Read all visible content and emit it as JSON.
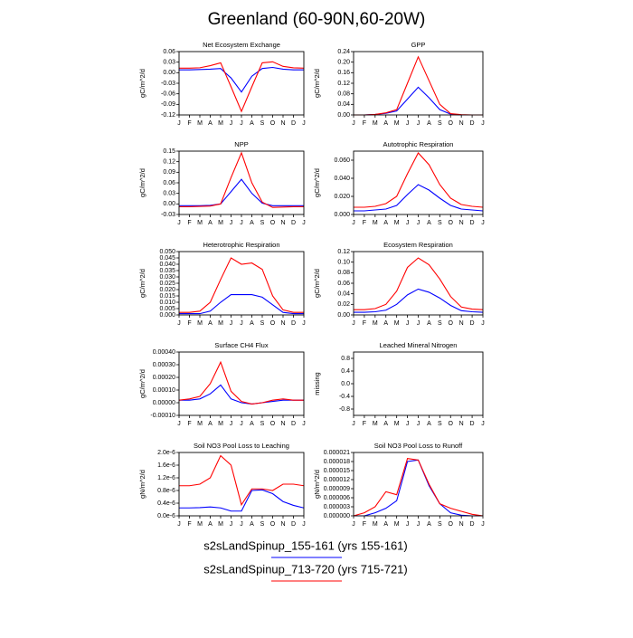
{
  "title": "Greenland (60-90N,60-20W)",
  "chart_data": [
    {
      "type": "line",
      "title": "Net Ecosystem Exchange",
      "ylabel": "gC/m^2/d",
      "categories": [
        "J",
        "F",
        "M",
        "A",
        "M",
        "J",
        "J",
        "A",
        "S",
        "O",
        "N",
        "D",
        "J"
      ],
      "ylim": [
        -0.12,
        0.06
      ],
      "yticks": [
        0.06,
        0.03,
        {
          "value": 0,
          "label": "0.00"
        },
        -0.03,
        -0.06,
        -0.09,
        -0.12
      ],
      "series": [
        {
          "name": "s2sLandSpinup_155-161 (yrs 155-161)",
          "color": "#0000ff",
          "values": [
            0.008,
            0.008,
            0.009,
            0.01,
            0.012,
            -0.015,
            -0.055,
            -0.01,
            0.012,
            0.015,
            0.01,
            0.008,
            0.008
          ]
        },
        {
          "name": "s2sLandSpinup_713-720 (yrs 715-721)",
          "color": "#ff0000",
          "values": [
            0.013,
            0.013,
            0.014,
            0.02,
            0.028,
            -0.04,
            -0.11,
            -0.04,
            0.028,
            0.031,
            0.018,
            0.014,
            0.013
          ]
        }
      ]
    },
    {
      "type": "line",
      "title": "GPP",
      "ylabel": "gC/m^2/d",
      "categories": [
        "J",
        "F",
        "M",
        "A",
        "M",
        "J",
        "J",
        "A",
        "S",
        "O",
        "N",
        "D",
        "J"
      ],
      "ylim": [
        0,
        0.24
      ],
      "yticks": [
        0.24,
        {
          "value": 0.2,
          "label": "0.20"
        },
        0.16,
        0.12,
        0.08,
        0.04,
        {
          "value": 0,
          "label": "0.00"
        }
      ],
      "series": [
        {
          "color": "#0000ff",
          "values": [
            0,
            0,
            0.002,
            0.006,
            0.015,
            0.06,
            0.105,
            0.065,
            0.02,
            0.003,
            0,
            0,
            0
          ]
        },
        {
          "color": "#ff0000",
          "values": [
            0,
            0,
            0.002,
            0.008,
            0.02,
            0.12,
            0.22,
            0.13,
            0.04,
            0.005,
            0.001,
            0,
            0
          ]
        }
      ]
    },
    {
      "type": "line",
      "title": "NPP",
      "ylabel": "gC/m^2/d",
      "categories": [
        "J",
        "F",
        "M",
        "A",
        "M",
        "J",
        "J",
        "A",
        "S",
        "O",
        "N",
        "D",
        "J"
      ],
      "ylim": [
        -0.03,
        0.15
      ],
      "yticks": [
        0.15,
        0.12,
        0.09,
        0.06,
        0.03,
        {
          "value": 0,
          "label": "0.00"
        },
        -0.03
      ],
      "series": [
        {
          "color": "#0000ff",
          "values": [
            -0.005,
            -0.005,
            -0.005,
            -0.004,
            0,
            0.035,
            0.07,
            0.03,
            0.002,
            -0.005,
            -0.005,
            -0.005,
            -0.005
          ]
        },
        {
          "color": "#ff0000",
          "values": [
            -0.008,
            -0.008,
            -0.007,
            -0.006,
            0,
            0.075,
            0.145,
            0.06,
            0.005,
            -0.01,
            -0.009,
            -0.008,
            -0.008
          ]
        }
      ]
    },
    {
      "type": "line",
      "title": "Autotrophic Respiration",
      "ylabel": "gC/m^2/d",
      "categories": [
        "J",
        "F",
        "M",
        "A",
        "M",
        "J",
        "J",
        "A",
        "S",
        "O",
        "N",
        "D",
        "J"
      ],
      "ylim": [
        0,
        0.07
      ],
      "yticks": [
        {
          "value": 0.06,
          "label": "0.060"
        },
        {
          "value": 0.04,
          "label": "0.040"
        },
        {
          "value": 0.02,
          "label": "0.020"
        },
        {
          "value": 0,
          "label": "0.000"
        }
      ],
      "series": [
        {
          "color": "#0000ff",
          "values": [
            0.004,
            0.004,
            0.005,
            0.006,
            0.01,
            0.022,
            0.033,
            0.027,
            0.018,
            0.01,
            0.006,
            0.005,
            0.004
          ]
        },
        {
          "color": "#ff0000",
          "values": [
            0.008,
            0.008,
            0.009,
            0.012,
            0.02,
            0.045,
            0.068,
            0.055,
            0.033,
            0.018,
            0.011,
            0.009,
            0.008
          ]
        }
      ]
    },
    {
      "type": "line",
      "title": "Heterotrophic Respiration",
      "ylabel": "gC/m^2/d",
      "categories": [
        "J",
        "F",
        "M",
        "A",
        "M",
        "J",
        "J",
        "A",
        "S",
        "O",
        "N",
        "D",
        "J"
      ],
      "ylim": [
        0,
        0.05
      ],
      "yticks": [
        {
          "value": 0.05,
          "label": "0.050"
        },
        0.045,
        {
          "value": 0.04,
          "label": "0.040"
        },
        0.035,
        {
          "value": 0.03,
          "label": "0.030"
        },
        0.025,
        {
          "value": 0.02,
          "label": "0.020"
        },
        0.015,
        {
          "value": 0.01,
          "label": "0.010"
        },
        0.005,
        {
          "value": 0,
          "label": "0.000"
        }
      ],
      "series": [
        {
          "color": "#0000ff",
          "values": [
            0.001,
            0.001,
            0.001,
            0.003,
            0.01,
            0.016,
            0.016,
            0.016,
            0.014,
            0.008,
            0.002,
            0.001,
            0.001
          ]
        },
        {
          "color": "#ff0000",
          "values": [
            0.002,
            0.002,
            0.003,
            0.01,
            0.028,
            0.045,
            0.04,
            0.041,
            0.036,
            0.015,
            0.004,
            0.002,
            0.002
          ]
        }
      ]
    },
    {
      "type": "line",
      "title": "Ecosystem Respiration",
      "ylabel": "gC/m^2/d",
      "categories": [
        "J",
        "F",
        "M",
        "A",
        "M",
        "J",
        "J",
        "A",
        "S",
        "O",
        "N",
        "D",
        "J"
      ],
      "ylim": [
        0,
        0.12
      ],
      "yticks": [
        0.12,
        {
          "value": 0.1,
          "label": "0.10"
        },
        0.08,
        0.06,
        0.04,
        0.02,
        {
          "value": 0,
          "label": "0.00"
        }
      ],
      "series": [
        {
          "color": "#0000ff",
          "values": [
            0.005,
            0.005,
            0.006,
            0.009,
            0.02,
            0.038,
            0.049,
            0.043,
            0.032,
            0.018,
            0.008,
            0.006,
            0.005
          ]
        },
        {
          "color": "#ff0000",
          "values": [
            0.01,
            0.01,
            0.012,
            0.02,
            0.045,
            0.09,
            0.108,
            0.095,
            0.068,
            0.035,
            0.015,
            0.011,
            0.01
          ]
        }
      ]
    },
    {
      "type": "line",
      "title": "Surface CH4 Flux",
      "ylabel": "gC/m^2/d",
      "categories": [
        "J",
        "F",
        "M",
        "A",
        "M",
        "J",
        "J",
        "A",
        "S",
        "O",
        "N",
        "D",
        "J"
      ],
      "ylim": [
        -0.0001,
        0.0004
      ],
      "yticks": [
        {
          "value": 0.0004,
          "label": "0.00040"
        },
        {
          "value": 0.0003,
          "label": "0.00030"
        },
        {
          "value": 0.0002,
          "label": "0.00020"
        },
        {
          "value": 0.0001,
          "label": "0.00010"
        },
        {
          "value": 0,
          "label": "0.00000"
        },
        {
          "value": -0.0001,
          "label": "-0.00010"
        }
      ],
      "series": [
        {
          "color": "#0000ff",
          "values": [
            2e-05,
            2e-05,
            3e-05,
            7e-05,
            0.00014,
            3e-05,
            0,
            -1e-05,
            0,
            1e-05,
            2e-05,
            2e-05,
            2e-05
          ]
        },
        {
          "color": "#ff0000",
          "values": [
            2e-05,
            3e-05,
            5e-05,
            0.00015,
            0.00032,
            9e-05,
            1e-05,
            -1e-05,
            0,
            2e-05,
            3e-05,
            2e-05,
            2e-05
          ]
        }
      ]
    },
    {
      "type": "line",
      "title": "Leached Mineral Nitrogen",
      "ylabel": "missing",
      "categories": [
        "J",
        "F",
        "M",
        "A",
        "M",
        "J",
        "J",
        "A",
        "S",
        "O",
        "N",
        "D",
        "J"
      ],
      "ylim": [
        -1,
        1
      ],
      "yticks": [
        0.8,
        0.4,
        {
          "value": 0,
          "label": "0.0"
        },
        -0.4,
        -0.8
      ],
      "series": []
    },
    {
      "type": "line",
      "title": "Soil NO3 Pool Loss to Leaching",
      "ylabel": "gN/m^2/d",
      "categories": [
        "J",
        "F",
        "M",
        "A",
        "M",
        "J",
        "J",
        "A",
        "S",
        "O",
        "N",
        "D",
        "J"
      ],
      "ylim": [
        0,
        2e-06
      ],
      "yticks": [
        {
          "value": 2e-06,
          "label": "2.0e-6"
        },
        {
          "value": 1.6e-06,
          "label": "1.6e-6"
        },
        {
          "value": 1.2e-06,
          "label": "1.2e-6"
        },
        {
          "value": 8e-07,
          "label": "0.8e-6"
        },
        {
          "value": 4e-07,
          "label": "0.4e-6"
        },
        {
          "value": 0,
          "label": "0.0e-6"
        }
      ],
      "series": [
        {
          "color": "#0000ff",
          "values": [
            2.5e-07,
            2.5e-07,
            2.6e-07,
            2.8e-07,
            2.5e-07,
            1.5e-07,
            1.5e-07,
            8e-07,
            8.2e-07,
            7e-07,
            4.5e-07,
            3.3e-07,
            2.5e-07
          ]
        },
        {
          "color": "#ff0000",
          "values": [
            9.5e-07,
            9.5e-07,
            1e-06,
            1.2e-06,
            1.9e-06,
            1.6e-06,
            3.5e-07,
            8.5e-07,
            8.5e-07,
            8e-07,
            1e-06,
            1e-06,
            9.5e-07
          ]
        }
      ]
    },
    {
      "type": "line",
      "title": "Soil NO3 Pool Loss to Runoff",
      "ylabel": "gN/m^2/d",
      "categories": [
        "J",
        "F",
        "M",
        "A",
        "M",
        "J",
        "J",
        "A",
        "S",
        "O",
        "N",
        "D",
        "J"
      ],
      "ylim": [
        0,
        2.1e-05
      ],
      "yticks": [
        2.1e-05,
        1.8e-05,
        1.5e-05,
        1.2e-05,
        9e-06,
        6e-06,
        3e-06,
        {
          "value": 0,
          "label": "0.000000"
        }
      ],
      "series": [
        {
          "color": "#0000ff",
          "values": [
            0,
            0,
            1e-06,
            2.5e-06,
            5e-06,
            1.8e-05,
            1.85e-05,
            1e-05,
            4e-06,
            1e-06,
            2e-07,
            0,
            0
          ]
        },
        {
          "color": "#ff0000",
          "values": [
            0,
            1e-06,
            3e-06,
            8e-06,
            7e-06,
            1.9e-05,
            1.85e-05,
            1.05e-05,
            4e-06,
            2.5e-06,
            1.5e-06,
            5e-07,
            0
          ]
        }
      ]
    }
  ]
}
